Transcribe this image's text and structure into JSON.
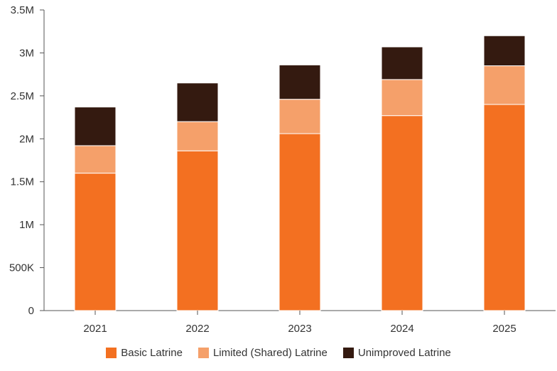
{
  "chart_data": {
    "type": "bar",
    "stacked": true,
    "categories": [
      "2021",
      "2022",
      "2023",
      "2024",
      "2025"
    ],
    "series": [
      {
        "name": "Basic Latrine",
        "color": "#f37021",
        "values": [
          1600000,
          1860000,
          2060000,
          2270000,
          2400000
        ]
      },
      {
        "name": "Limited (Shared) Latrine",
        "color": "#f5a06a",
        "values": [
          320000,
          340000,
          400000,
          420000,
          450000
        ]
      },
      {
        "name": "Unimproved Latrine",
        "color": "#341a10",
        "values": [
          450000,
          450000,
          400000,
          380000,
          350000
        ]
      }
    ],
    "ylim": [
      0,
      3500000
    ],
    "yticks": [
      0,
      500000,
      1000000,
      1500000,
      2000000,
      2500000,
      3000000,
      3500000
    ],
    "ytick_labels": [
      "0",
      "500K",
      "1M",
      "1.5M",
      "2M",
      "2.5M",
      "3M",
      "3.5M"
    ],
    "xlabel": "",
    "ylabel": "",
    "grid": false,
    "legend_position": "bottom"
  }
}
